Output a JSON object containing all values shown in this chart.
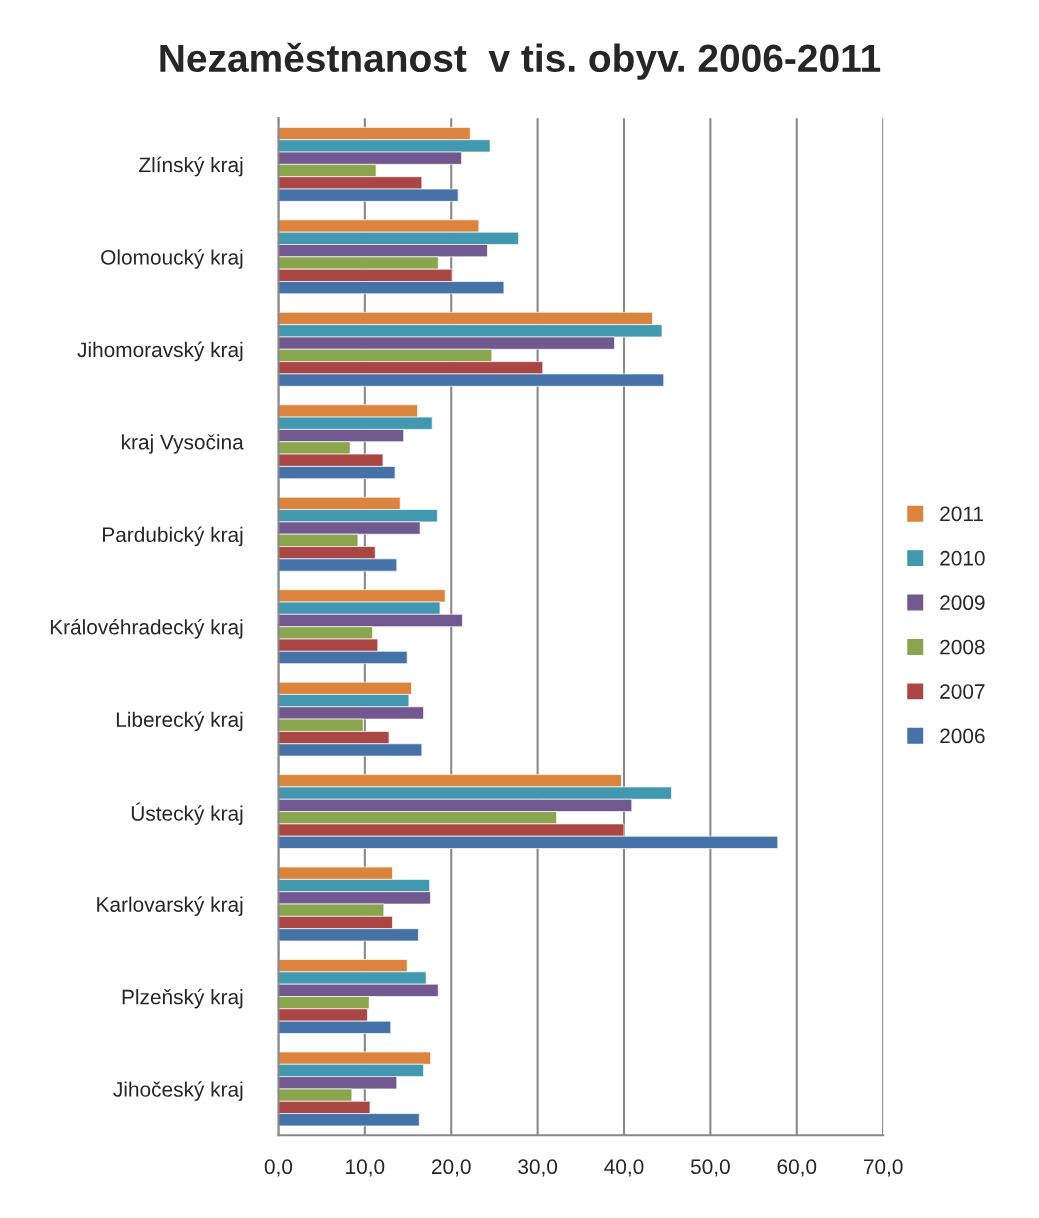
{
  "chart_data": {
    "type": "bar",
    "orientation": "horizontal",
    "title": "Nezaměstnanost  v tis. obyv. 2006-2011",
    "categories": [
      "Zlínský kraj",
      "Olomoucký kraj",
      "Jihomoravský kraj",
      "kraj Vysočina",
      "Pardubický kraj",
      "Královéhradecký kraj",
      "Liberecký kraj",
      "Ústecký kraj",
      "Karlovarský kraj",
      "Plzeňský kraj",
      "Jihočeský kraj"
    ],
    "series": [
      {
        "name": "2011",
        "color": "#db843d",
        "values": [
          22.2,
          23.2,
          43.3,
          16.1,
          14.1,
          19.3,
          15.4,
          39.7,
          13.2,
          14.9,
          17.6
        ]
      },
      {
        "name": "2010",
        "color": "#4198af",
        "values": [
          24.5,
          27.8,
          44.4,
          17.8,
          18.4,
          18.7,
          15.1,
          45.5,
          17.5,
          17.1,
          16.8
        ]
      },
      {
        "name": "2009",
        "color": "#71588f",
        "values": [
          21.2,
          24.2,
          38.9,
          14.5,
          16.4,
          21.3,
          16.8,
          40.9,
          17.6,
          18.5,
          13.7
        ]
      },
      {
        "name": "2008",
        "color": "#89a54e",
        "values": [
          11.3,
          18.5,
          24.7,
          8.3,
          9.2,
          10.9,
          9.8,
          32.2,
          12.2,
          10.5,
          8.5
        ]
      },
      {
        "name": "2007",
        "color": "#aa4643",
        "values": [
          16.6,
          20.1,
          30.6,
          12.1,
          11.2,
          11.5,
          12.8,
          40.0,
          13.2,
          10.3,
          10.6
        ]
      },
      {
        "name": "2006",
        "color": "#4572a7",
        "values": [
          20.8,
          26.1,
          44.6,
          13.5,
          13.7,
          14.9,
          16.6,
          57.8,
          16.2,
          13.0,
          16.3
        ]
      }
    ],
    "xlim": [
      0,
      70
    ],
    "xticks": [
      {
        "value": 0,
        "label": "0,0"
      },
      {
        "value": 10,
        "label": "10,0"
      },
      {
        "value": 20,
        "label": "20,0"
      },
      {
        "value": 30,
        "label": "30,0"
      },
      {
        "value": 40,
        "label": "40,0"
      },
      {
        "value": 50,
        "label": "50,0"
      },
      {
        "value": 60,
        "label": "60,0"
      },
      {
        "value": 70,
        "label": "70,0"
      }
    ],
    "grid": "x",
    "legend": "right"
  }
}
